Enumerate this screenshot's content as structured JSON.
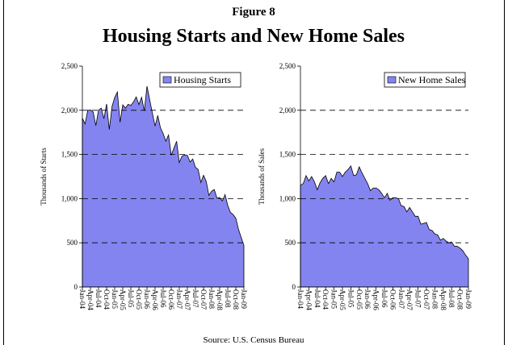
{
  "figure": {
    "label": "Figure 8",
    "title": "Housing Starts and New Home Sales",
    "source": "Source: U.S. Census Bureau"
  },
  "chart_data": [
    {
      "type": "area",
      "ylabel": "Thousands of Starts",
      "legend": "upper right",
      "grid": true,
      "categories": [
        "Jan-04",
        null,
        null,
        "Apr-04",
        null,
        null,
        "Jul-04",
        null,
        null,
        "Oct-04",
        null,
        null,
        "Jan-05",
        null,
        null,
        "Apr-05",
        null,
        null,
        "Jul-05",
        null,
        null,
        "Oct-05",
        null,
        null,
        "Jan-06",
        null,
        null,
        "Apr-06",
        null,
        null,
        "Jul-06",
        null,
        null,
        "Oct-06",
        null,
        null,
        "Jan-07",
        null,
        null,
        "Apr-07",
        null,
        null,
        "Jul-07",
        null,
        null,
        "Oct-07",
        null,
        null,
        "Jan-08",
        null,
        null,
        "Apr-08",
        null,
        null,
        "Jul-08",
        null,
        null,
        "Oct-08",
        null,
        null,
        "Jan-09"
      ],
      "series": [
        {
          "name": "Housing Starts",
          "color": "#8484f0",
          "values": [
            1911,
            1846,
            1998,
            2003,
            1981,
            1827,
            2002,
            2024,
            1905,
            2072,
            1782,
            2042,
            2144,
            2207,
            1864,
            2061,
            2025,
            2068,
            2054,
            2095,
            2151,
            2065,
            2147,
            1994,
            2273,
            2119,
            1969,
            1821,
            1942,
            1802,
            1737,
            1650,
            1720,
            1491,
            1570,
            1649,
            1409,
            1480,
            1495,
            1490,
            1415,
            1448,
            1354,
            1330,
            1183,
            1264,
            1197,
            1037,
            1084,
            1103,
            1005,
            1013,
            973,
            1046,
            923,
            844,
            820,
            777,
            652,
            560,
            470
          ]
        }
      ],
      "ylim": [
        0,
        2500
      ],
      "yticks": [
        0,
        500,
        {
          "value": 1000,
          "label": "1,000"
        },
        {
          "value": 1500,
          "label": "1,500"
        },
        {
          "value": 2000,
          "label": "2,000"
        },
        {
          "value": 2500,
          "label": "2,500"
        }
      ]
    },
    {
      "type": "area",
      "ylabel": "Thousands of Sales",
      "legend": "upper right",
      "grid": true,
      "categories": [
        "Jan-04",
        null,
        null,
        "Apr-04",
        null,
        null,
        "Jul-04",
        null,
        null,
        "Oct-04",
        null,
        null,
        "Jan-05",
        null,
        null,
        "Apr-05",
        null,
        null,
        "Jul-05",
        null,
        null,
        "Oct-05",
        null,
        null,
        "Jan-06",
        null,
        null,
        "Apr-06",
        null,
        null,
        "Jul-06",
        null,
        null,
        "Oct-06",
        null,
        null,
        "Jan-07",
        null,
        null,
        "Apr-07",
        null,
        null,
        "Jul-07",
        null,
        null,
        "Oct-07",
        null,
        null,
        "Jan-08",
        null,
        null,
        "Apr-08",
        null,
        null,
        "Jul-08",
        null,
        null,
        "Oct-08",
        null,
        null,
        "Jan-09"
      ],
      "series": [
        {
          "name": "New Home Sales",
          "color": "#8484f0",
          "values": [
            1150,
            1170,
            1260,
            1200,
            1250,
            1190,
            1100,
            1180,
            1230,
            1260,
            1170,
            1230,
            1190,
            1300,
            1300,
            1250,
            1300,
            1330,
            1370,
            1260,
            1270,
            1360,
            1290,
            1230,
            1170,
            1090,
            1120,
            1120,
            1100,
            1060,
            1010,
            1060,
            980,
            1010,
            1010,
            1000,
            920,
            910,
            850,
            900,
            850,
            800,
            800,
            710,
            720,
            730,
            650,
            640,
            600,
            590,
            530,
            550,
            520,
            500,
            510,
            460,
            460,
            440,
            410,
            360,
            320
          ]
        }
      ],
      "ylim": [
        0,
        2500
      ],
      "yticks": [
        0,
        500,
        {
          "value": 1000,
          "label": "1,000"
        },
        {
          "value": 1500,
          "label": "1,500"
        },
        {
          "value": 2000,
          "label": "2,000"
        },
        {
          "value": 2500,
          "label": "2,500"
        }
      ]
    }
  ]
}
